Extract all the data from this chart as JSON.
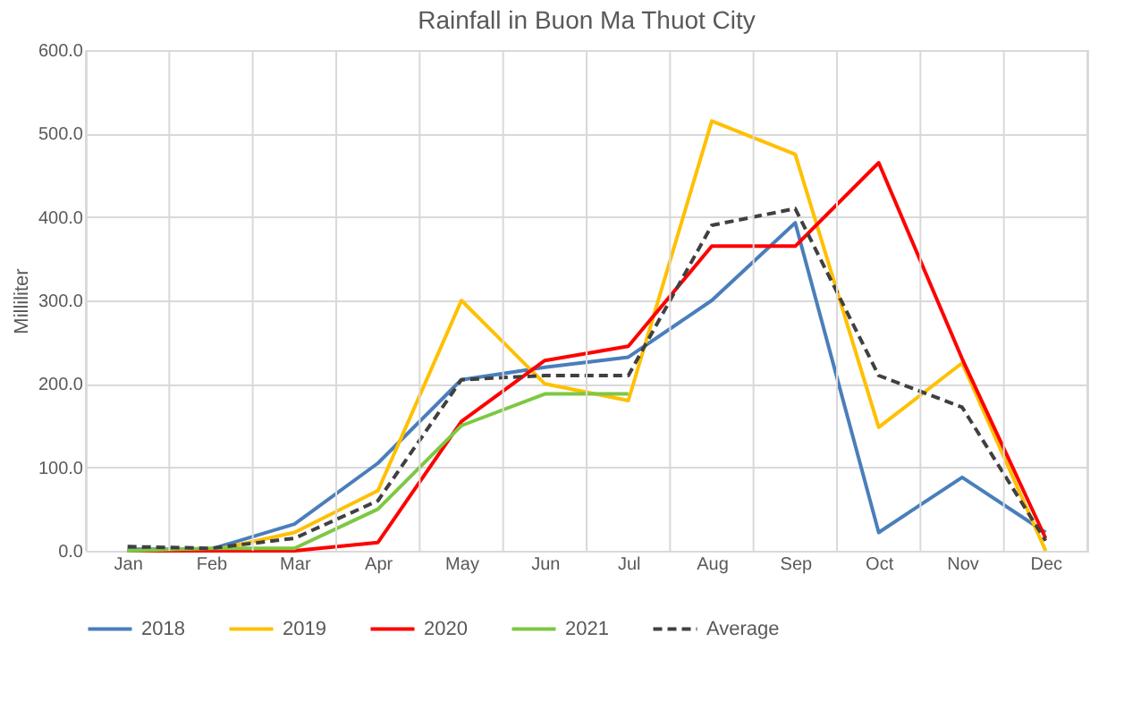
{
  "chart_data": {
    "type": "line",
    "title": "Rainfall in Buon Ma Thuot City",
    "ylabel": "Milliliter",
    "categories": [
      "Jan",
      "Feb",
      "Mar",
      "Apr",
      "May",
      "Jun",
      "Jul",
      "Aug",
      "Sep",
      "Oct",
      "Nov",
      "Dec"
    ],
    "series": [
      {
        "name": "2018",
        "color": "#4a7ebb",
        "line_style": "solid",
        "values": [
          2,
          2,
          32,
          105,
          205,
          220,
          232,
          300,
          393,
          22,
          88,
          22
        ]
      },
      {
        "name": "2019",
        "color": "#ffc000",
        "line_style": "solid",
        "values": [
          0,
          0,
          22,
          72,
          300,
          200,
          180,
          515,
          475,
          148,
          225,
          0
        ]
      },
      {
        "name": "2020",
        "color": "#ff0000",
        "line_style": "solid",
        "values": [
          0,
          0,
          0,
          10,
          155,
          228,
          245,
          365,
          365,
          465,
          230,
          15
        ]
      },
      {
        "name": "2021",
        "color": "#7dc843",
        "line_style": "solid",
        "values": [
          0,
          3,
          3,
          50,
          150,
          188,
          188,
          null,
          null,
          null,
          null,
          null
        ]
      },
      {
        "name": "Average",
        "color": "#404040",
        "line_style": "dashed",
        "values": [
          5,
          3,
          15,
          60,
          205,
          210,
          210,
          390,
          410,
          210,
          172,
          12
        ]
      }
    ],
    "ylim": [
      0,
      600
    ],
    "yticks": [
      {
        "value": 0,
        "label": "0.0"
      },
      {
        "value": 100,
        "label": "100.0"
      },
      {
        "value": 200,
        "label": "200.0"
      },
      {
        "value": 300,
        "label": "300.0"
      },
      {
        "value": 400,
        "label": "400.0"
      },
      {
        "value": 500,
        "label": "500.0"
      },
      {
        "value": 600,
        "label": "600.0"
      }
    ],
    "grid": true,
    "legend": "bottom",
    "marker": "none"
  }
}
